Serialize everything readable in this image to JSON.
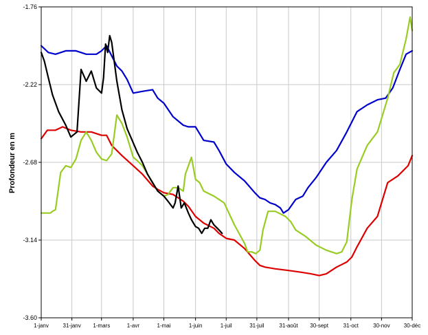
{
  "chart_data": {
    "type": "line",
    "title": "",
    "xlabel": "",
    "ylabel": "Profondeur en m",
    "x_ticks": [
      "1-janv",
      "31-janv",
      "1-mars",
      "1-avr",
      "1-mai",
      "1-juin",
      "1-juil",
      "31-juil",
      "31-août",
      "30-sept",
      "31-oct",
      "30-nov",
      "30-déc"
    ],
    "x_tick_days": [
      1,
      31,
      60,
      91,
      121,
      152,
      182,
      212,
      243,
      273,
      304,
      334,
      364
    ],
    "y_ticks": [
      "-1.76",
      "-2.22",
      "-2.68",
      "-3.14",
      "-3.60"
    ],
    "xlim": [
      1,
      364
    ],
    "ylim": [
      -3.6,
      -1.76
    ],
    "grid": true,
    "legend": "none",
    "series": [
      {
        "color": "#0000cc",
        "x": [
          1,
          8,
          15,
          25,
          35,
          45,
          55,
          60,
          65,
          70,
          75,
          80,
          85,
          91,
          100,
          110,
          115,
          121,
          130,
          140,
          145,
          152,
          160,
          170,
          175,
          182,
          190,
          200,
          210,
          215,
          220,
          225,
          230,
          235,
          238,
          243,
          250,
          257,
          262,
          270,
          280,
          290,
          300,
          310,
          320,
          330,
          338,
          345,
          352,
          358,
          364
        ],
        "y": [
          -1.99,
          -2.03,
          -2.04,
          -2.02,
          -2.02,
          -2.04,
          -2.04,
          -2.02,
          -1.99,
          -2.05,
          -2.11,
          -2.14,
          -2.19,
          -2.27,
          -2.26,
          -2.25,
          -2.3,
          -2.33,
          -2.41,
          -2.46,
          -2.47,
          -2.47,
          -2.55,
          -2.56,
          -2.61,
          -2.69,
          -2.74,
          -2.79,
          -2.86,
          -2.89,
          -2.9,
          -2.92,
          -2.93,
          -2.95,
          -2.98,
          -2.96,
          -2.9,
          -2.88,
          -2.83,
          -2.77,
          -2.68,
          -2.61,
          -2.5,
          -2.38,
          -2.34,
          -2.31,
          -2.3,
          -2.24,
          -2.13,
          -2.04,
          -2.02
        ]
      },
      {
        "color": "#dd0000",
        "x": [
          1,
          7,
          15,
          22,
          30,
          40,
          50,
          60,
          65,
          70,
          80,
          91,
          100,
          110,
          115,
          121,
          130,
          140,
          145,
          152,
          160,
          170,
          175,
          182,
          190,
          200,
          210,
          215,
          220,
          230,
          243,
          255,
          265,
          273,
          280,
          290,
          300,
          305,
          310,
          320,
          330,
          340,
          350,
          360,
          364
        ],
        "y": [
          -2.54,
          -2.49,
          -2.49,
          -2.47,
          -2.49,
          -2.5,
          -2.5,
          -2.52,
          -2.52,
          -2.58,
          -2.64,
          -2.7,
          -2.75,
          -2.82,
          -2.84,
          -2.86,
          -2.87,
          -2.91,
          -2.94,
          -3.0,
          -3.04,
          -3.07,
          -3.1,
          -3.13,
          -3.14,
          -3.19,
          -3.26,
          -3.29,
          -3.3,
          -3.31,
          -3.32,
          -3.33,
          -3.34,
          -3.35,
          -3.34,
          -3.3,
          -3.27,
          -3.24,
          -3.18,
          -3.07,
          -3.0,
          -2.8,
          -2.76,
          -2.7,
          -2.64
        ]
      },
      {
        "color": "#99cc22",
        "x": [
          1,
          5,
          10,
          12,
          15,
          20,
          25,
          30,
          35,
          40,
          45,
          50,
          55,
          60,
          65,
          70,
          75,
          80,
          85,
          91,
          95,
          100,
          105,
          110,
          115,
          121,
          125,
          130,
          135,
          140,
          142,
          148,
          152,
          156,
          160,
          170,
          180,
          190,
          200,
          203,
          207,
          211,
          215,
          218,
          223,
          230,
          240,
          245,
          250,
          260,
          270,
          280,
          290,
          295,
          300,
          305,
          310,
          315,
          320,
          330,
          335,
          340,
          346,
          352,
          358,
          362,
          364
        ],
        "y": [
          -2.98,
          -2.98,
          -2.98,
          -2.97,
          -2.96,
          -2.74,
          -2.7,
          -2.71,
          -2.66,
          -2.55,
          -2.5,
          -2.55,
          -2.62,
          -2.66,
          -2.67,
          -2.63,
          -2.4,
          -2.45,
          -2.53,
          -2.65,
          -2.67,
          -2.7,
          -2.75,
          -2.8,
          -2.85,
          -2.88,
          -2.87,
          -2.83,
          -2.83,
          -2.85,
          -2.75,
          -2.65,
          -2.78,
          -2.8,
          -2.85,
          -2.88,
          -2.92,
          -3.05,
          -3.16,
          -3.21,
          -3.21,
          -3.22,
          -3.2,
          -3.08,
          -2.97,
          -2.97,
          -3.0,
          -3.03,
          -3.08,
          -3.12,
          -3.17,
          -3.2,
          -3.22,
          -3.21,
          -3.15,
          -2.9,
          -2.72,
          -2.65,
          -2.58,
          -2.5,
          -2.4,
          -2.3,
          -2.15,
          -2.1,
          -1.95,
          -1.82,
          -1.9
        ]
      },
      {
        "color": "#000000",
        "x": [
          1,
          4,
          8,
          12,
          18,
          25,
          30,
          36,
          40,
          45,
          50,
          55,
          60,
          62,
          64,
          66,
          68,
          70,
          75,
          80,
          85,
          90,
          95,
          100,
          105,
          110,
          115,
          121,
          125,
          130,
          132,
          135,
          138,
          141,
          145,
          148,
          152,
          155,
          158,
          161,
          164,
          167,
          170,
          175,
          178
        ],
        "y": [
          -2.03,
          -2.08,
          -2.18,
          -2.28,
          -2.38,
          -2.46,
          -2.53,
          -2.5,
          -2.13,
          -2.2,
          -2.14,
          -2.24,
          -2.27,
          -2.18,
          -1.98,
          -2.03,
          -1.93,
          -1.97,
          -2.2,
          -2.37,
          -2.48,
          -2.55,
          -2.62,
          -2.68,
          -2.75,
          -2.8,
          -2.85,
          -2.88,
          -2.91,
          -2.95,
          -2.92,
          -2.82,
          -2.95,
          -2.92,
          -2.98,
          -3.02,
          -3.06,
          -3.07,
          -3.1,
          -3.07,
          -3.07,
          -3.02,
          -3.05,
          -3.08,
          -3.1
        ]
      }
    ]
  }
}
